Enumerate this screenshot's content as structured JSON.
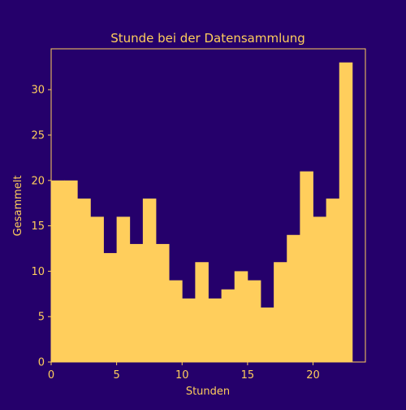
{
  "colors": {
    "background": "#25006b",
    "bar": "#ffce5c",
    "text": "#ffce5c",
    "axis": "#ffce5c"
  },
  "chart_data": {
    "type": "bar",
    "title": "Stunde bei der Datensammlung",
    "xlabel": "Stunden",
    "ylabel": "Gesammelt",
    "bin_width": 1,
    "x": [
      0,
      1,
      2,
      3,
      4,
      5,
      6,
      7,
      8,
      9,
      10,
      11,
      12,
      13,
      14,
      15,
      16,
      17,
      18,
      19,
      20,
      21,
      22
    ],
    "values": [
      20,
      20,
      18,
      16,
      12,
      16,
      13,
      18,
      13,
      9,
      7,
      11,
      7,
      8,
      10,
      9,
      6,
      11,
      14,
      21,
      16,
      18,
      33
    ],
    "xlim": [
      0,
      24
    ],
    "ylim": [
      0,
      34.5
    ],
    "xticks": [
      0,
      5,
      10,
      15,
      20
    ],
    "yticks": [
      0,
      5,
      10,
      15,
      20,
      25,
      30
    ],
    "grid": false,
    "legend": "none"
  }
}
